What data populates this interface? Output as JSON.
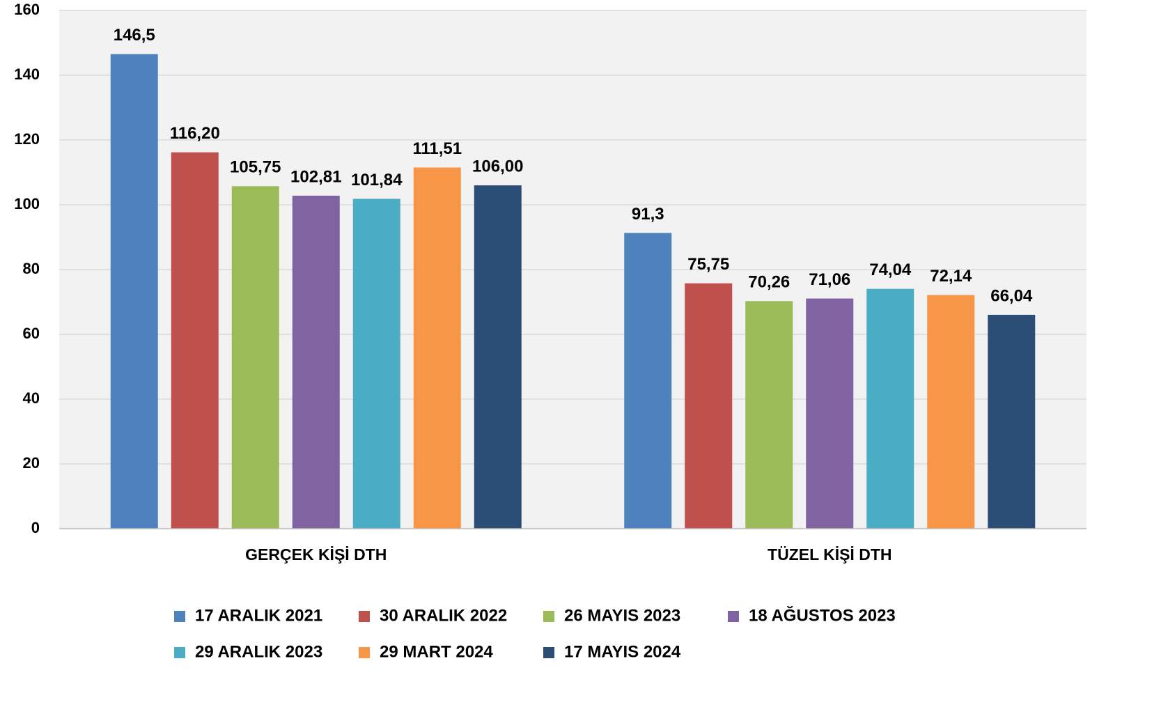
{
  "chart_data": {
    "type": "bar",
    "categories": [
      "GERÇEK KİŞİ DTH",
      "TÜZEL KİŞİ DTH"
    ],
    "series": [
      {
        "name": "17 ARALIK 2021",
        "color": "#4f81bd",
        "values": [
          146.5,
          91.3
        ],
        "value_labels": [
          "146,5",
          "91,3"
        ]
      },
      {
        "name": "30 ARALIK 2022",
        "color": "#c0504d",
        "values": [
          116.2,
          75.75
        ],
        "value_labels": [
          "116,20",
          "75,75"
        ]
      },
      {
        "name": "26 MAYIS 2023",
        "color": "#9bbb59",
        "values": [
          105.75,
          70.26
        ],
        "value_labels": [
          "105,75",
          "70,26"
        ]
      },
      {
        "name": "18 AĞUSTOS 2023",
        "color": "#8064a2",
        "values": [
          102.81,
          71.06
        ],
        "value_labels": [
          "102,81",
          "71,06"
        ]
      },
      {
        "name": "29 ARALIK 2023",
        "color": "#4bacc6",
        "values": [
          101.84,
          74.04
        ],
        "value_labels": [
          "101,84",
          "74,04"
        ]
      },
      {
        "name": "29 MART 2024",
        "color": "#f79646",
        "values": [
          111.51,
          72.14
        ],
        "value_labels": [
          "111,51",
          "72,14"
        ]
      },
      {
        "name": "17 MAYIS 2024",
        "color": "#2c4d75",
        "values": [
          106.0,
          66.04
        ],
        "value_labels": [
          "106,00",
          "66,04"
        ]
      }
    ],
    "ylim": [
      0,
      160
    ],
    "yticks": [
      0,
      20,
      40,
      60,
      80,
      100,
      120,
      140,
      160
    ],
    "grid": true
  }
}
